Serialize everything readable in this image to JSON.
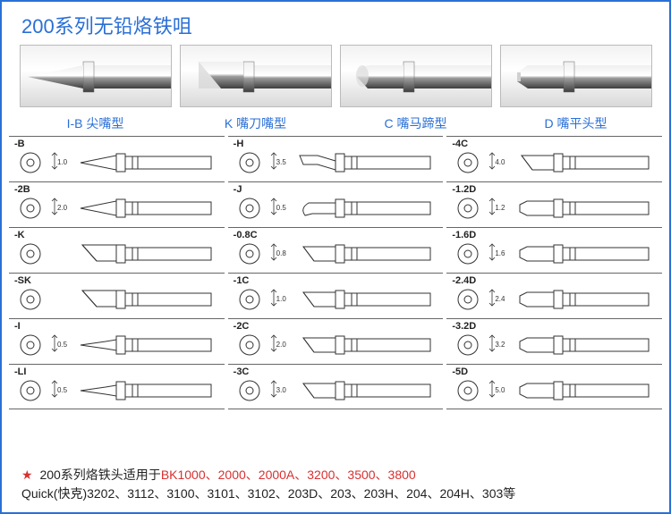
{
  "title": "200系列无铅烙铁咀",
  "photo_labels": [
    "I-B 尖嘴型",
    "K 嘴刀嘴型",
    "C 嘴马蹄型",
    "D 嘴平头型"
  ],
  "columns": [
    [
      {
        "code": "-B",
        "dim": "1.0",
        "tip": "cone"
      },
      {
        "code": "-2B",
        "dim": "2.0",
        "tip": "cone"
      },
      {
        "code": "-K",
        "dim": "",
        "tip": "knife"
      },
      {
        "code": "-SK",
        "dim": "",
        "tip": "knife"
      },
      {
        "code": "-I",
        "dim": "0.5",
        "tip": "needle"
      },
      {
        "code": "-LI",
        "dim": "0.5",
        "tip": "needle"
      }
    ],
    [
      {
        "code": "-H",
        "dim": "3.5",
        "tip": "bent"
      },
      {
        "code": "-J",
        "dim": "0.5",
        "tip": "hook"
      },
      {
        "code": "-0.8C",
        "dim": "0.8",
        "tip": "bevel"
      },
      {
        "code": "-1C",
        "dim": "1.0",
        "tip": "bevel"
      },
      {
        "code": "-2C",
        "dim": "2.0",
        "tip": "bevel"
      },
      {
        "code": "-3C",
        "dim": "3.0",
        "tip": "bevel"
      }
    ],
    [
      {
        "code": "-4C",
        "dim": "4.0",
        "tip": "bevel"
      },
      {
        "code": "-1.2D",
        "dim": "1.2",
        "tip": "chisel"
      },
      {
        "code": "-1.6D",
        "dim": "1.6",
        "tip": "chisel"
      },
      {
        "code": "-2.4D",
        "dim": "2.4",
        "tip": "chisel"
      },
      {
        "code": "-3.2D",
        "dim": "3.2",
        "tip": "chisel"
      },
      {
        "code": "-5D",
        "dim": "5.0",
        "tip": "chisel"
      }
    ]
  ],
  "footer_line1_prefix": "200系列烙铁头适用于",
  "footer_line1_models": "BK1000、2000、2000A、3200、3500、3800",
  "footer_line2": "Quick(快克)3202、3112、3100、3101、3102、203D、203、203H、204、204H、303等",
  "colors": {
    "accent": "#2a6fd6",
    "star": "#d93030",
    "diagram_stroke": "#333333"
  }
}
